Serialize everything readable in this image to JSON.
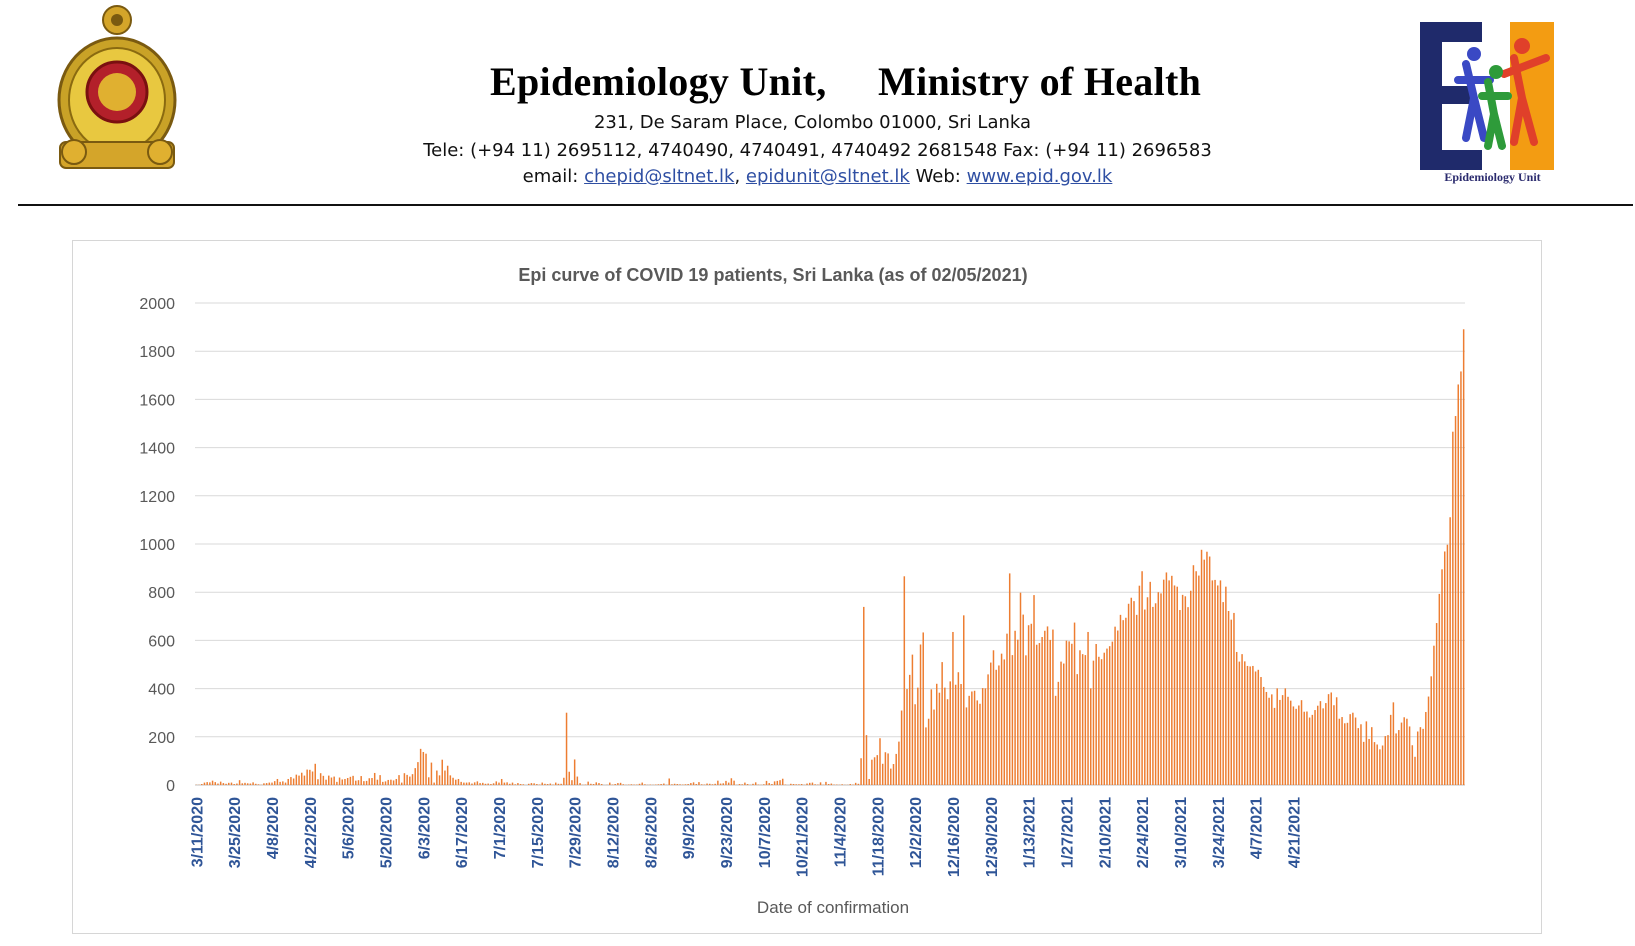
{
  "header": {
    "org_name": "Epidemiology Unit,     Ministry of Health",
    "address": "231, De Saram Place, Colombo 01000, Sri Lanka",
    "phones": "Tele: (+94 11) 2695112, 4740490, 4740491, 4740492 2681548  Fax: (+94 11) 2696583",
    "email_label": "email: ",
    "email1": "chepid@sltnet.lk",
    "sep": ", ",
    "email2": "epidunit@sltnet.lk",
    "web_label": " Web: ",
    "web": "www.epid.gov.lk",
    "logo_caption": "Epidemiology Unit"
  },
  "colors": {
    "bar": "#ed7d31",
    "grid": "#d9d9d9",
    "axis_text": "#595959",
    "x_tick": "#2f5597",
    "link": "#2f4fa3"
  },
  "chart_data": {
    "type": "bar",
    "title": "Epi curve of COVID 19 patients, Sri Lanka  (as of 02/05/2021)",
    "xlabel": "Date of confirmation",
    "ylabel": "",
    "ylim": [
      0,
      2000
    ],
    "yticks": [
      0,
      200,
      400,
      600,
      800,
      1000,
      1200,
      1400,
      1600,
      1800,
      2000
    ],
    "grid": true,
    "x_tick_labels": [
      "3/11/2020",
      "3/25/2020",
      "4/8/2020",
      "4/22/2020",
      "5/6/2020",
      "5/20/2020",
      "6/3/2020",
      "6/17/2020",
      "7/1/2020",
      "7/15/2020",
      "7/29/2020",
      "8/12/2020",
      "8/26/2020",
      "9/9/2020",
      "9/23/2020",
      "10/7/2020",
      "10/21/2020",
      "11/4/2020",
      "11/18/2020",
      "12/2/2020",
      "12/16/2020",
      "12/30/2020",
      "1/13/2021",
      "1/27/2021",
      "2/10/2021",
      "2/24/2021",
      "3/10/2021",
      "3/24/2021",
      "4/7/2021",
      "4/21/2021"
    ],
    "x_start": "3/11/2020",
    "x_end": "5/2/2021",
    "values": [
      1,
      1,
      4,
      10,
      12,
      11,
      18,
      12,
      6,
      14,
      8,
      5,
      9,
      10,
      4,
      6,
      20,
      7,
      9,
      7,
      6,
      11,
      5,
      3,
      1,
      7,
      8,
      10,
      10,
      16,
      25,
      13,
      15,
      10,
      25,
      33,
      27,
      43,
      39,
      51,
      39,
      64,
      63,
      56,
      88,
      24,
      49,
      38,
      22,
      39,
      31,
      35,
      13,
      31,
      23,
      25,
      29,
      34,
      38,
      18,
      20,
      37,
      16,
      17,
      28,
      29,
      50,
      22,
      41,
      13,
      15,
      21,
      22,
      19,
      25,
      41,
      10,
      49,
      42,
      35,
      45,
      70,
      95,
      150,
      137,
      130,
      32,
      93,
      10,
      60,
      40,
      105,
      60,
      80,
      40,
      30,
      22,
      25,
      13,
      10,
      10,
      11,
      6,
      11,
      15,
      8,
      9,
      5,
      6,
      4,
      7,
      15,
      10,
      25,
      10,
      11,
      5,
      10,
      3,
      8,
      4,
      3,
      0,
      5,
      8,
      7,
      4,
      2,
      10,
      5,
      4,
      6,
      2,
      10,
      5,
      5,
      30,
      300,
      55,
      20,
      106,
      35,
      8,
      1,
      2,
      14,
      5,
      4,
      11,
      8,
      4,
      0,
      1,
      10,
      2,
      4,
      8,
      9,
      3,
      1,
      2,
      3,
      2,
      2,
      5,
      10,
      3,
      1,
      2,
      1,
      2,
      3,
      4,
      6,
      1,
      27,
      3,
      5,
      4,
      3,
      2,
      3,
      4,
      8,
      11,
      4,
      12,
      3,
      2,
      6,
      5,
      3,
      5,
      18,
      6,
      7,
      17,
      10,
      28,
      18,
      1,
      4,
      3,
      10,
      4,
      1,
      5,
      11,
      2,
      1,
      3,
      17,
      8,
      4,
      15,
      17,
      20,
      26,
      2,
      0,
      5,
      4,
      3,
      3,
      4,
      1,
      6,
      9,
      10,
      3,
      2,
      11,
      1,
      13,
      4,
      6,
      2,
      2,
      1,
      3,
      1,
      1,
      4,
      2,
      9,
      5,
      111,
      739,
      207,
      25,
      105,
      115,
      124,
      194,
      88,
      136,
      131,
      68,
      87,
      129,
      180,
      309,
      866,
      398,
      457,
      541,
      335,
      404,
      583,
      633,
      239,
      275,
      397,
      313,
      420,
      383,
      510,
      404,
      356,
      430,
      635,
      416,
      468,
      419,
      704,
      322,
      370,
      388,
      391,
      351,
      337,
      402,
      401,
      459,
      508,
      559,
      478,
      496,
      545,
      521,
      628,
      878,
      539,
      640,
      603,
      798,
      707,
      538,
      663,
      669,
      788,
      582,
      589,
      614,
      640,
      658,
      602,
      645,
      370,
      428,
      512,
      504,
      599,
      596,
      586,
      674,
      460,
      559,
      543,
      539,
      635,
      401,
      516,
      585,
      532,
      522,
      549,
      566,
      576,
      595,
      657,
      641,
      706,
      684,
      694,
      752,
      777,
      763,
      706,
      827,
      887,
      728,
      779,
      843,
      739,
      754,
      800,
      795,
      852,
      882,
      849,
      868,
      828,
      823,
      726,
      789,
      783,
      738,
      806,
      912,
      887,
      869,
      976,
      935,
      968,
      948,
      849,
      851,
      828,
      849,
      759,
      823,
      722,
      686,
      714,
      552,
      512,
      543,
      513,
      494,
      492,
      494,
      471,
      478,
      448,
      407,
      386,
      362,
      376,
      320,
      401,
      353,
      373,
      401,
      366,
      350,
      326,
      316,
      330,
      352,
      304,
      305,
      280,
      291,
      311,
      329,
      348,
      318,
      340,
      377,
      384,
      331,
      364,
      275,
      282,
      256,
      258,
      294,
      300,
      280,
      236,
      252,
      179,
      264,
      191,
      240,
      178,
      168,
      148,
      164,
      203,
      207,
      291,
      343,
      214,
      228,
      259,
      281,
      275,
      243,
      165,
      117,
      222,
      240,
      233,
      303,
      367,
      451,
      578,
      672,
      793,
      895,
      969,
      997,
      1111,
      1466,
      1531,
      1662,
      1716,
      1891
    ]
  }
}
